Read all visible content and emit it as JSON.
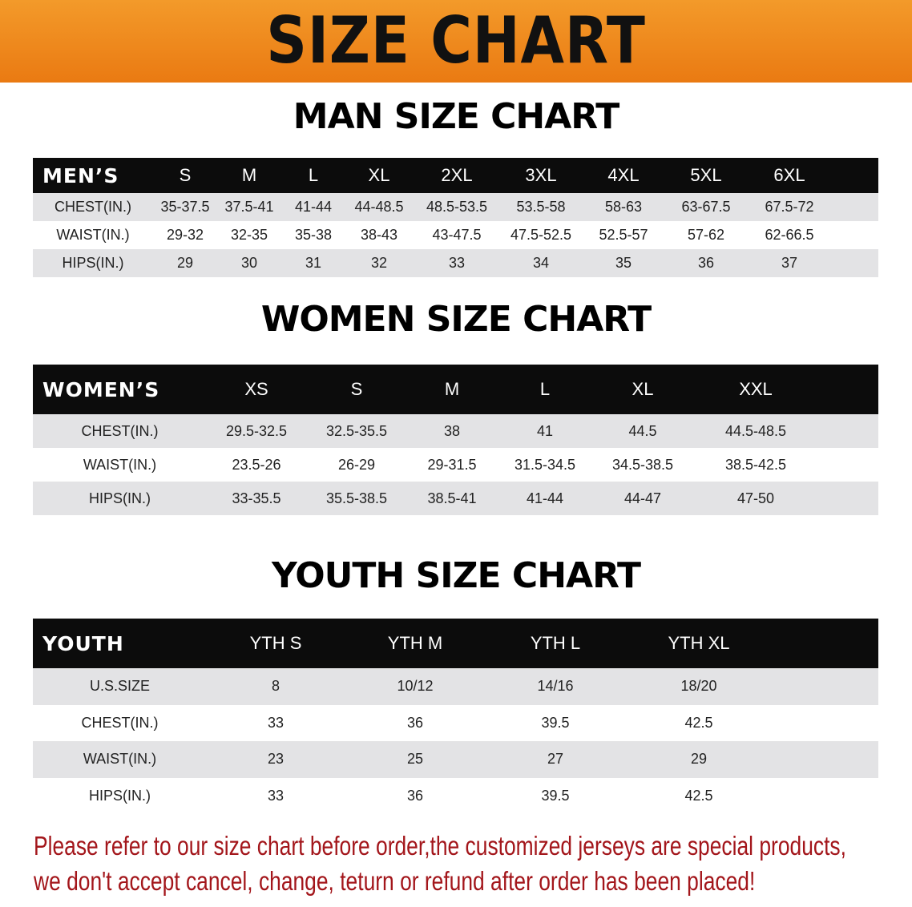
{
  "title": "SIZE CHART",
  "men": {
    "title": "MAN SIZE CHART",
    "header": [
      "MEN’S",
      "S",
      "M",
      "L",
      "XL",
      "2XL",
      "3XL",
      "4XL",
      "5XL",
      "6XL"
    ],
    "rows": [
      [
        "CHEST(IN.)",
        "35-37.5",
        "37.5-41",
        "41-44",
        "44-48.5",
        "48.5-53.5",
        "53.5-58",
        "58-63",
        "63-67.5",
        "67.5-72"
      ],
      [
        "WAIST(IN.)",
        "29-32",
        "32-35",
        "35-38",
        "38-43",
        "43-47.5",
        "47.5-52.5",
        "52.5-57",
        "57-62",
        "62-66.5"
      ],
      [
        "HIPS(IN.)",
        "29",
        "30",
        "31",
        "32",
        "33",
        "34",
        "35",
        "36",
        "37"
      ]
    ]
  },
  "women": {
    "title": "WOMEN SIZE CHART",
    "header": [
      "WOMEN’S",
      "XS",
      "S",
      "M",
      "L",
      "XL",
      "XXL"
    ],
    "rows": [
      [
        "CHEST(IN.)",
        "29.5-32.5",
        "32.5-35.5",
        "38",
        "41",
        "44.5",
        "44.5-48.5"
      ],
      [
        "WAIST(IN.)",
        "23.5-26",
        "26-29",
        "29-31.5",
        "31.5-34.5",
        "34.5-38.5",
        "38.5-42.5"
      ],
      [
        "HIPS(IN.)",
        "33-35.5",
        "35.5-38.5",
        "38.5-41",
        "41-44",
        "44-47",
        "47-50"
      ]
    ]
  },
  "youth": {
    "title": "YOUTH SIZE CHART",
    "header": [
      "YOUTH",
      "YTH S",
      "YTH M",
      "YTH L",
      "YTH XL"
    ],
    "rows": [
      [
        "U.S.SIZE",
        "8",
        "10/12",
        "14/16",
        "18/20"
      ],
      [
        "CHEST(IN.)",
        "33",
        "36",
        "39.5",
        "42.5"
      ],
      [
        "WAIST(IN.)",
        "23",
        "25",
        "27",
        "29"
      ],
      [
        "HIPS(IN.)",
        "33",
        "36",
        "39.5",
        "42.5"
      ]
    ]
  },
  "notice": {
    "line1": "Please refer to our size chart before order,the customized jerseys are special products,",
    "line2": "we don't accept cancel, change, teturn or refund after order has been placed!"
  },
  "colors": {
    "banner": "#ef8a1e",
    "header_row": "#0c0c0c",
    "stripe": "#e3e3e5",
    "notice": "#a3161b"
  }
}
